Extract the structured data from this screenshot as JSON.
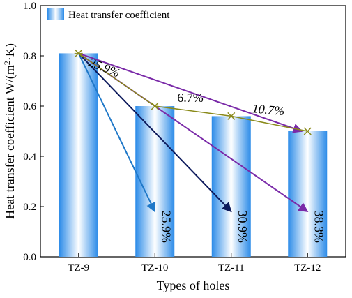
{
  "chart_data": {
    "type": "bar",
    "title": "",
    "xlabel": "Types of holes",
    "ylabel": "Heat transfer coefficient W/(m²·K)",
    "ylabel_parts": {
      "main": "Heat transfer coefficient W/(m",
      "sup": "2",
      "tail": "·K)"
    },
    "categories": [
      "TZ-9",
      "TZ-10",
      "TZ-11",
      "TZ-12"
    ],
    "values": [
      0.81,
      0.6,
      0.56,
      0.5
    ],
    "ylim": [
      0.0,
      1.0
    ],
    "yticks": [
      "0.0",
      "0.2",
      "0.4",
      "0.6",
      "0.8",
      "1.0"
    ],
    "grid": false,
    "legend": {
      "position": "top-left",
      "entries": [
        "Heat transfer coefficient"
      ]
    },
    "trend_line": {
      "values": [
        0.81,
        0.6,
        0.56,
        0.5
      ],
      "marker": "x"
    },
    "step_labels": [
      "25.9%",
      "6.7%",
      "10.7%"
    ],
    "arrows": [
      {
        "from": "TZ-9",
        "to": "TZ-10",
        "value_at_head": 0.18,
        "label": "25.9%"
      },
      {
        "from": "TZ-9",
        "to": "TZ-11",
        "value_at_head": 0.18,
        "label": "30.9%"
      },
      {
        "from": "TZ-9",
        "to": "TZ-12",
        "value_at_head": 0.18,
        "label": "38.3%"
      },
      {
        "from": "TZ-9",
        "to": "TZ-12",
        "value_at_head": 0.5,
        "label": ""
      }
    ],
    "colors": {
      "bar_edge": "#2b8be8",
      "bar_center": "#ffffff",
      "trend_line": "#8a8a1a",
      "trend_marker": "#8a8a1a",
      "arrow_to_tz10": "#1f78c8",
      "arrow_to_tz11": "#0d1a5c",
      "arrow_to_tz12": "#7a2aa8",
      "arrow_upper": "#7a2aa8"
    }
  }
}
